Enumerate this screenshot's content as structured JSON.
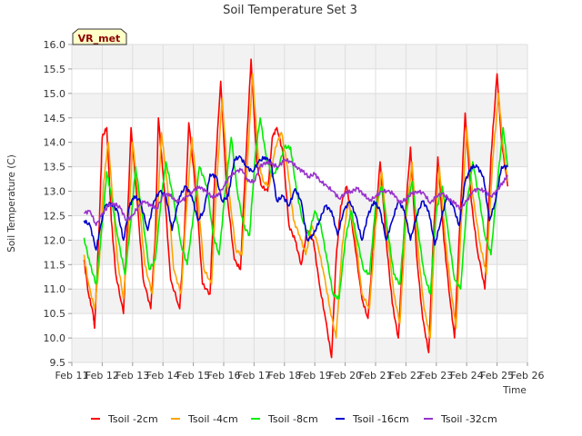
{
  "chart_data": {
    "type": "line",
    "title": "Soil Temperature Set 3",
    "xlabel": "Time",
    "ylabel": "Soil Temperature (C)",
    "badge": "VR_met",
    "ylim": [
      9.5,
      16.0
    ],
    "yticks": [
      "9.5",
      "10.0",
      "10.5",
      "11.0",
      "11.5",
      "12.0",
      "12.5",
      "13.0",
      "13.5",
      "14.0",
      "14.5",
      "15.0",
      "15.5",
      "16.0"
    ],
    "xlim": [
      11,
      26
    ],
    "xticks": [
      "Feb 11",
      "Feb 12",
      "Feb 13",
      "Feb 14",
      "Feb 15",
      "Feb 16",
      "Feb 17",
      "Feb 18",
      "Feb 19",
      "Feb 20",
      "Feb 21",
      "Feb 22",
      "Feb 23",
      "Feb 24",
      "Feb 25",
      "Feb 26"
    ],
    "grid": true,
    "legend_position": "bottom",
    "series": [
      {
        "name": "Tsoil -2cm",
        "color": "#ff0000",
        "x": [
          11.4,
          11.55,
          11.7,
          11.75,
          11.9,
          12.0,
          12.15,
          12.3,
          12.45,
          12.7,
          12.8,
          12.95,
          13.15,
          13.35,
          13.6,
          13.75,
          13.85,
          14.05,
          14.25,
          14.55,
          14.7,
          14.85,
          15.1,
          15.3,
          15.55,
          15.7,
          15.9,
          16.1,
          16.35,
          16.55,
          16.75,
          16.9,
          17.1,
          17.25,
          17.45,
          17.6,
          17.75,
          17.95,
          18.15,
          18.35,
          18.55,
          18.75,
          18.95,
          19.15,
          19.35,
          19.55,
          19.7,
          19.85,
          20.05,
          20.3,
          20.55,
          20.75,
          20.95,
          21.15,
          21.35,
          21.55,
          21.75,
          21.95,
          22.15,
          22.35,
          22.55,
          22.75,
          22.9,
          23.05,
          23.25,
          23.45,
          23.6,
          23.75,
          23.95,
          24.15,
          24.35,
          24.6,
          24.8,
          25.0,
          25.15,
          25.35
        ],
        "values": [
          11.6,
          10.9,
          10.5,
          10.2,
          12.3,
          14.1,
          14.3,
          12.4,
          11.3,
          10.5,
          11.9,
          14.3,
          12.8,
          11.2,
          10.6,
          12.1,
          14.5,
          13.0,
          11.2,
          10.6,
          12.1,
          14.4,
          12.9,
          11.1,
          10.9,
          13.2,
          15.25,
          13.0,
          11.6,
          11.4,
          13.9,
          15.7,
          13.5,
          13.1,
          13.0,
          14.1,
          14.3,
          13.8,
          12.3,
          12.0,
          11.5,
          12.2,
          12.0,
          11.1,
          10.4,
          9.6,
          11.6,
          12.7,
          13.1,
          12.0,
          10.8,
          10.4,
          12.1,
          13.6,
          12.0,
          10.7,
          10.0,
          12.3,
          13.9,
          11.7,
          10.4,
          9.7,
          12.0,
          13.7,
          12.0,
          10.8,
          10.0,
          12.0,
          14.6,
          12.8,
          11.8,
          11.0,
          13.7,
          15.4,
          14.0,
          13.1
        ]
      },
      {
        "name": "Tsoil -4cm",
        "color": "#ffa500",
        "x": [
          11.4,
          11.55,
          11.75,
          11.9,
          12.05,
          12.2,
          12.35,
          12.5,
          12.7,
          12.85,
          13.0,
          13.2,
          13.4,
          13.65,
          13.8,
          13.95,
          14.15,
          14.35,
          14.6,
          14.75,
          14.95,
          15.15,
          15.35,
          15.6,
          15.75,
          15.95,
          16.15,
          16.4,
          16.6,
          16.8,
          16.95,
          17.15,
          17.3,
          17.5,
          17.7,
          17.9,
          18.1,
          18.3,
          18.5,
          18.7,
          18.9,
          19.1,
          19.3,
          19.5,
          19.7,
          19.9,
          20.1,
          20.35,
          20.55,
          20.8,
          21.0,
          21.2,
          21.4,
          21.6,
          21.8,
          22.0,
          22.2,
          22.4,
          22.6,
          22.8,
          22.95,
          23.1,
          23.3,
          23.5,
          23.65,
          23.8,
          24.0,
          24.2,
          24.45,
          24.65,
          24.85,
          25.05,
          25.2,
          25.35
        ],
        "values": [
          11.7,
          11.1,
          10.6,
          11.5,
          13.2,
          14.0,
          12.8,
          11.6,
          10.8,
          12.0,
          14.0,
          12.9,
          11.5,
          10.9,
          12.3,
          14.2,
          13.1,
          11.4,
          10.9,
          12.4,
          14.1,
          12.9,
          11.4,
          11.1,
          13.0,
          14.9,
          13.1,
          11.8,
          11.7,
          13.8,
          15.4,
          13.6,
          13.2,
          13.1,
          13.9,
          14.2,
          13.5,
          12.4,
          12.1,
          11.7,
          12.3,
          11.9,
          11.3,
          10.6,
          10.0,
          11.9,
          12.8,
          12.0,
          10.9,
          10.6,
          12.3,
          13.4,
          12.1,
          10.9,
          10.3,
          12.4,
          13.6,
          11.8,
          10.6,
          10.0,
          12.2,
          13.5,
          12.0,
          10.9,
          10.2,
          12.1,
          14.3,
          12.9,
          11.9,
          11.3,
          13.6,
          15.0,
          13.9,
          13.2
        ]
      },
      {
        "name": "Tsoil -8cm",
        "color": "#00ee00",
        "x": [
          11.4,
          11.6,
          11.8,
          12.0,
          12.15,
          12.3,
          12.5,
          12.75,
          12.95,
          13.1,
          13.3,
          13.55,
          13.75,
          13.95,
          14.1,
          14.3,
          14.6,
          14.8,
          15.0,
          15.2,
          15.45,
          15.65,
          15.85,
          16.05,
          16.25,
          16.45,
          16.65,
          16.85,
          17.05,
          17.2,
          17.4,
          17.6,
          17.8,
          18.0,
          18.2,
          18.4,
          18.6,
          18.8,
          19.0,
          19.2,
          19.4,
          19.6,
          19.8,
          20.0,
          20.2,
          20.4,
          20.6,
          20.8,
          21.0,
          21.2,
          21.4,
          21.6,
          21.8,
          22.0,
          22.2,
          22.4,
          22.6,
          22.8,
          23.0,
          23.2,
          23.4,
          23.6,
          23.8,
          24.0,
          24.2,
          24.4,
          24.6,
          24.8,
          25.0,
          25.2,
          25.35
        ],
        "values": [
          12.05,
          11.5,
          11.1,
          12.3,
          13.4,
          12.9,
          12.1,
          11.3,
          12.4,
          13.5,
          12.6,
          11.4,
          11.6,
          12.9,
          13.6,
          13.0,
          11.9,
          11.5,
          12.5,
          13.5,
          13.1,
          12.1,
          11.7,
          13.0,
          14.1,
          13.0,
          12.3,
          12.1,
          13.8,
          14.5,
          13.7,
          13.3,
          13.5,
          13.9,
          13.9,
          13.0,
          12.4,
          12.1,
          12.6,
          12.3,
          11.6,
          10.9,
          10.8,
          12.0,
          12.6,
          12.0,
          11.4,
          11.3,
          12.7,
          13.1,
          12.2,
          11.3,
          11.1,
          12.6,
          13.2,
          12.2,
          11.3,
          10.9,
          12.6,
          13.1,
          12.1,
          11.2,
          11.0,
          12.7,
          13.6,
          12.9,
          12.1,
          11.7,
          13.1,
          14.3,
          13.5
        ]
      },
      {
        "name": "Tsoil -16cm",
        "color": "#0000cd",
        "x": [
          11.4,
          11.6,
          11.8,
          11.95,
          12.1,
          12.3,
          12.5,
          12.7,
          12.9,
          13.05,
          13.25,
          13.5,
          13.7,
          13.9,
          14.1,
          14.3,
          14.55,
          14.75,
          14.95,
          15.15,
          15.35,
          15.55,
          15.75,
          15.95,
          16.15,
          16.35,
          16.55,
          16.75,
          16.95,
          17.15,
          17.35,
          17.55,
          17.75,
          17.95,
          18.15,
          18.35,
          18.55,
          18.75,
          18.95,
          19.15,
          19.35,
          19.55,
          19.75,
          19.95,
          20.15,
          20.35,
          20.55,
          20.75,
          20.95,
          21.15,
          21.35,
          21.55,
          21.75,
          21.95,
          22.15,
          22.35,
          22.55,
          22.75,
          22.95,
          23.15,
          23.35,
          23.55,
          23.75,
          23.95,
          24.15,
          24.35,
          24.55,
          24.75,
          24.95,
          25.15,
          25.35
        ],
        "values": [
          12.4,
          12.3,
          11.8,
          12.3,
          12.7,
          12.75,
          12.6,
          12.0,
          12.7,
          12.9,
          12.8,
          12.2,
          12.8,
          13.0,
          12.9,
          12.2,
          12.9,
          13.1,
          12.9,
          12.4,
          12.6,
          13.35,
          13.3,
          12.8,
          12.9,
          13.65,
          13.7,
          13.5,
          13.4,
          13.6,
          13.7,
          13.6,
          12.8,
          12.9,
          12.7,
          13.05,
          12.8,
          12.0,
          12.1,
          12.4,
          12.7,
          12.6,
          12.1,
          12.6,
          12.8,
          12.5,
          12.0,
          12.5,
          12.8,
          12.6,
          12.0,
          12.4,
          12.8,
          12.6,
          12.0,
          12.5,
          12.8,
          12.6,
          11.9,
          12.4,
          12.9,
          12.7,
          12.3,
          13.2,
          13.5,
          13.5,
          13.3,
          12.4,
          12.8,
          13.5,
          13.5
        ]
      },
      {
        "name": "Tsoil -32cm",
        "color": "#9932cc",
        "x": [
          11.4,
          11.6,
          11.8,
          12.0,
          12.2,
          12.4,
          12.6,
          12.8,
          13.0,
          13.2,
          13.4,
          13.6,
          13.8,
          14.0,
          14.2,
          14.4,
          14.6,
          14.8,
          15.0,
          15.2,
          15.4,
          15.6,
          15.8,
          16.0,
          16.2,
          16.4,
          16.6,
          16.8,
          17.0,
          17.2,
          17.4,
          17.6,
          17.8,
          18.0,
          18.2,
          18.4,
          18.6,
          18.8,
          19.0,
          19.2,
          19.4,
          19.6,
          19.8,
          20.0,
          20.2,
          20.4,
          20.6,
          20.8,
          21.0,
          21.2,
          21.4,
          21.6,
          21.8,
          22.0,
          22.2,
          22.4,
          22.6,
          22.8,
          23.0,
          23.2,
          23.4,
          23.6,
          23.8,
          24.0,
          24.2,
          24.4,
          24.6,
          24.8,
          25.0,
          25.2,
          25.35
        ],
        "values": [
          12.55,
          12.6,
          12.3,
          12.55,
          12.7,
          12.75,
          12.65,
          12.4,
          12.5,
          12.7,
          12.8,
          12.7,
          12.65,
          12.9,
          12.95,
          12.8,
          12.8,
          12.9,
          13.0,
          13.1,
          13.0,
          12.9,
          12.9,
          13.1,
          13.3,
          13.4,
          13.45,
          13.2,
          13.2,
          13.5,
          13.6,
          13.55,
          13.5,
          13.65,
          13.6,
          13.5,
          13.4,
          13.3,
          13.35,
          13.2,
          13.1,
          13.0,
          12.85,
          12.95,
          13.0,
          13.05,
          12.95,
          12.8,
          12.9,
          13.0,
          13.0,
          12.95,
          12.75,
          12.85,
          12.95,
          13.0,
          12.95,
          12.75,
          12.9,
          12.95,
          12.85,
          12.75,
          12.65,
          12.8,
          13.0,
          13.05,
          13.0,
          12.9,
          13.0,
          13.2,
          13.3
        ]
      }
    ]
  }
}
